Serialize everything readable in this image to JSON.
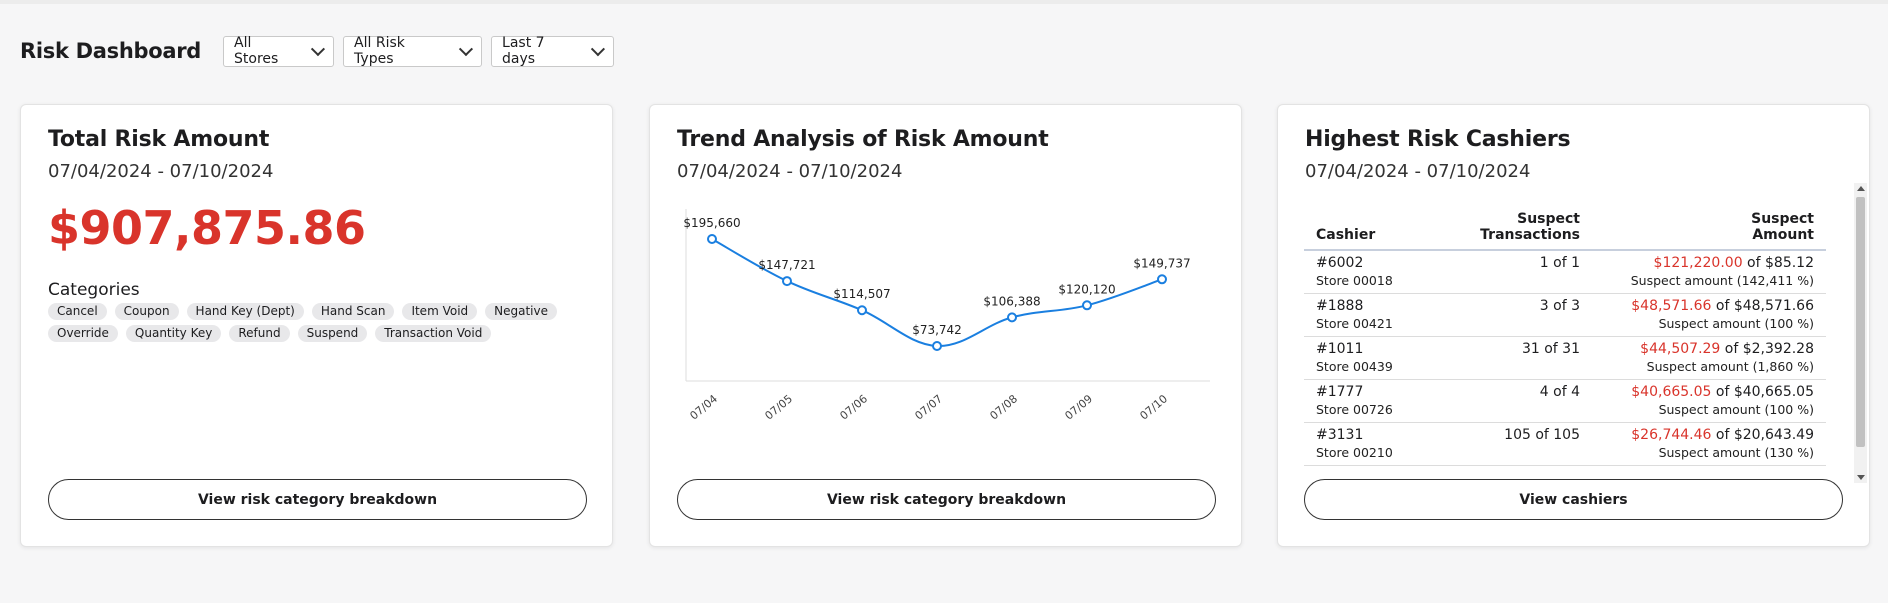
{
  "header": {
    "title": "Risk Dashboard",
    "filters": [
      {
        "label": "All Stores"
      },
      {
        "label": "All Risk Types"
      },
      {
        "label": "Last 7 days"
      }
    ]
  },
  "total_risk": {
    "title": "Total Risk Amount",
    "date_range": "07/04/2024 - 07/10/2024",
    "amount": "$907,875.86",
    "categories_label": "Categories",
    "categories": [
      "Cancel",
      "Coupon",
      "Hand Key (Dept)",
      "Hand Scan",
      "Item Void",
      "Negative",
      "Override",
      "Quantity Key",
      "Refund",
      "Suspend",
      "Transaction Void"
    ],
    "button_label": "View risk category breakdown"
  },
  "trend": {
    "title": "Trend Analysis of Risk Amount",
    "date_range": "07/04/2024 - 07/10/2024",
    "button_label": "View risk category breakdown"
  },
  "chart_data": {
    "type": "line",
    "categories": [
      "07/04",
      "07/05",
      "07/06",
      "07/07",
      "07/08",
      "07/09",
      "07/10"
    ],
    "values": [
      195660,
      147721,
      114507,
      73742,
      106388,
      120120,
      149737
    ],
    "data_labels": [
      "$195,660",
      "$147,721",
      "$114,507",
      "$73,742",
      "$106,388",
      "$120,120",
      "$149,737"
    ],
    "title": "",
    "xlabel": "",
    "ylabel": "",
    "line_color": "#1a7fe0",
    "grid": false
  },
  "cashiers": {
    "title": "Highest Risk Cashiers",
    "date_range": "07/04/2024 - 07/10/2024",
    "columns": {
      "cashier": "Cashier",
      "transactions_1": "Suspect",
      "transactions_2": "Transactions",
      "amount_1": "Suspect",
      "amount_2": "Amount"
    },
    "rows": [
      {
        "id": "#6002",
        "store": "Store 00018",
        "tx": "1 of 1",
        "suspect": "$121,220.00",
        "of": " of $85.12",
        "pct": "Suspect amount (142,411 %)"
      },
      {
        "id": "#1888",
        "store": "Store 00421",
        "tx": "3 of 3",
        "suspect": "$48,571.66",
        "of": " of $48,571.66",
        "pct": "Suspect amount (100 %)"
      },
      {
        "id": "#1011",
        "store": "Store 00439",
        "tx": "31 of 31",
        "suspect": "$44,507.29",
        "of": " of $2,392.28",
        "pct": "Suspect amount (1,860 %)"
      },
      {
        "id": "#1777",
        "store": "Store 00726",
        "tx": "4 of 4",
        "suspect": "$40,665.05",
        "of": " of $40,665.05",
        "pct": "Suspect amount (100 %)"
      },
      {
        "id": "#3131",
        "store": "Store 00210",
        "tx": "105 of 105",
        "suspect": "$26,744.46",
        "of": " of $20,643.49",
        "pct": "Suspect amount (130 %)"
      }
    ],
    "button_label": "View cashiers"
  },
  "colors": {
    "accent_red": "#d9342b",
    "line_blue": "#1a7fe0"
  }
}
